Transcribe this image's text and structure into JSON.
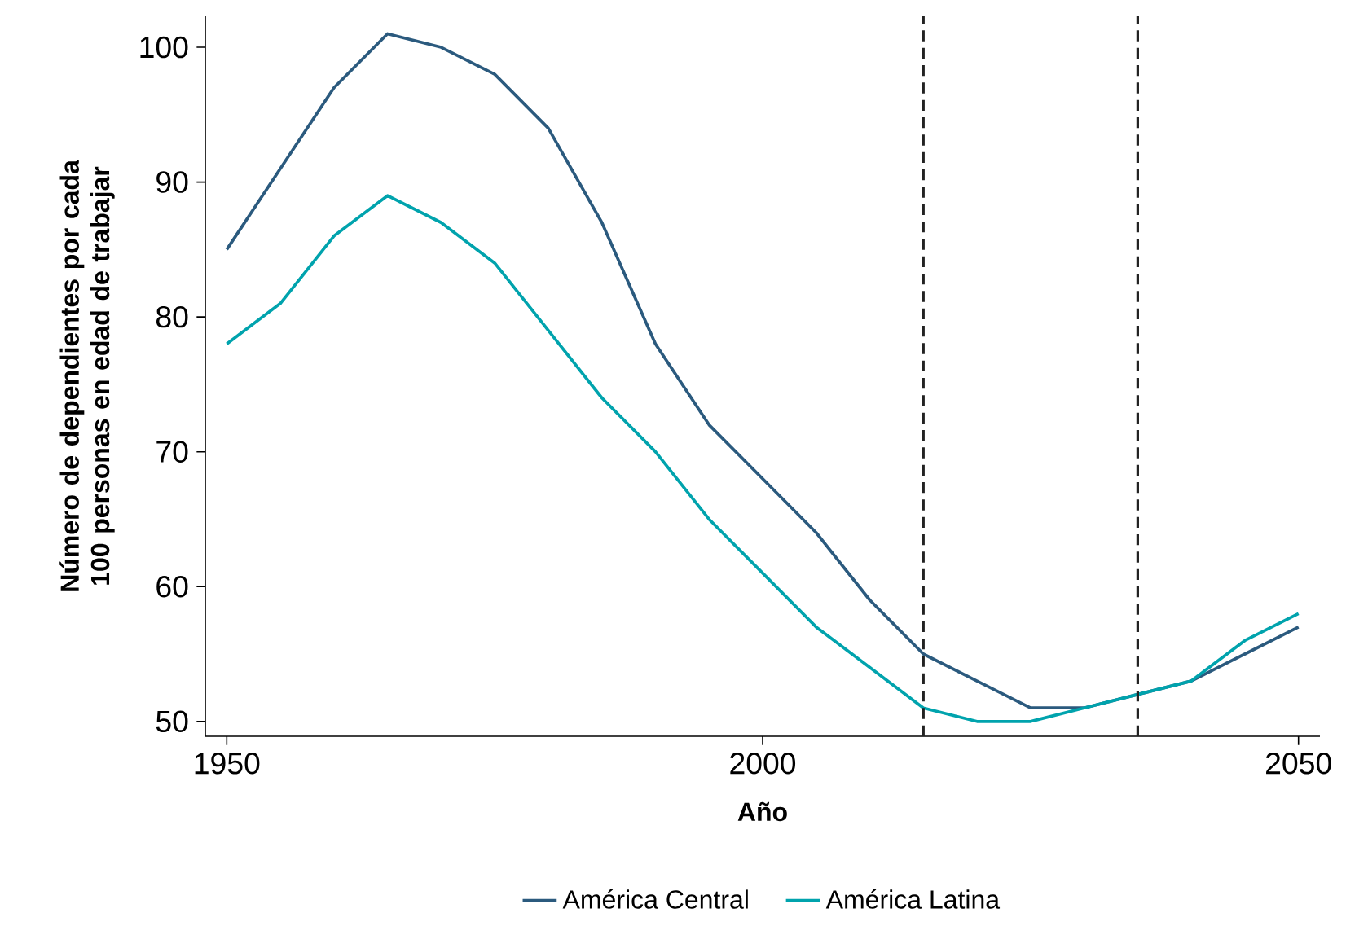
{
  "chart_data": {
    "type": "line",
    "xlabel": "Año",
    "ylabel": "Número de dependientes por cada 100 personas en edad de trabajar",
    "x": [
      1950,
      1955,
      1960,
      1965,
      1970,
      1975,
      1980,
      1985,
      1990,
      1995,
      2000,
      2005,
      2010,
      2015,
      2020,
      2025,
      2030,
      2035,
      2040,
      2045,
      2050
    ],
    "series": [
      {
        "name": "América Central",
        "color": "#2b5a7e",
        "values": [
          85,
          91,
          97,
          101,
          100,
          98,
          94,
          87,
          78,
          72,
          68,
          64,
          59,
          55,
          53,
          51,
          51,
          52,
          53,
          55,
          57
        ]
      },
      {
        "name": "América Latina",
        "color": "#00a3ad",
        "values": [
          78,
          81,
          86,
          89,
          87,
          84,
          79,
          74,
          70,
          65,
          61,
          57,
          54,
          51,
          50,
          50,
          51,
          52,
          53,
          56,
          58
        ]
      }
    ],
    "xlim": [
      1948,
      2052
    ],
    "ylim": [
      48.9,
      102.3
    ],
    "xticks": [
      1950,
      2000,
      2050
    ],
    "yticks": [
      50,
      60,
      70,
      80,
      90,
      100
    ],
    "ref_lines": [
      {
        "axis": "x",
        "value": 2015,
        "color": "#222222",
        "line_style": "dashed"
      },
      {
        "axis": "x",
        "value": 2035,
        "color": "#222222",
        "line_style": "dashed"
      }
    ],
    "grid": false,
    "legend": "bottom",
    "marker": "none",
    "line_style": "solid"
  }
}
